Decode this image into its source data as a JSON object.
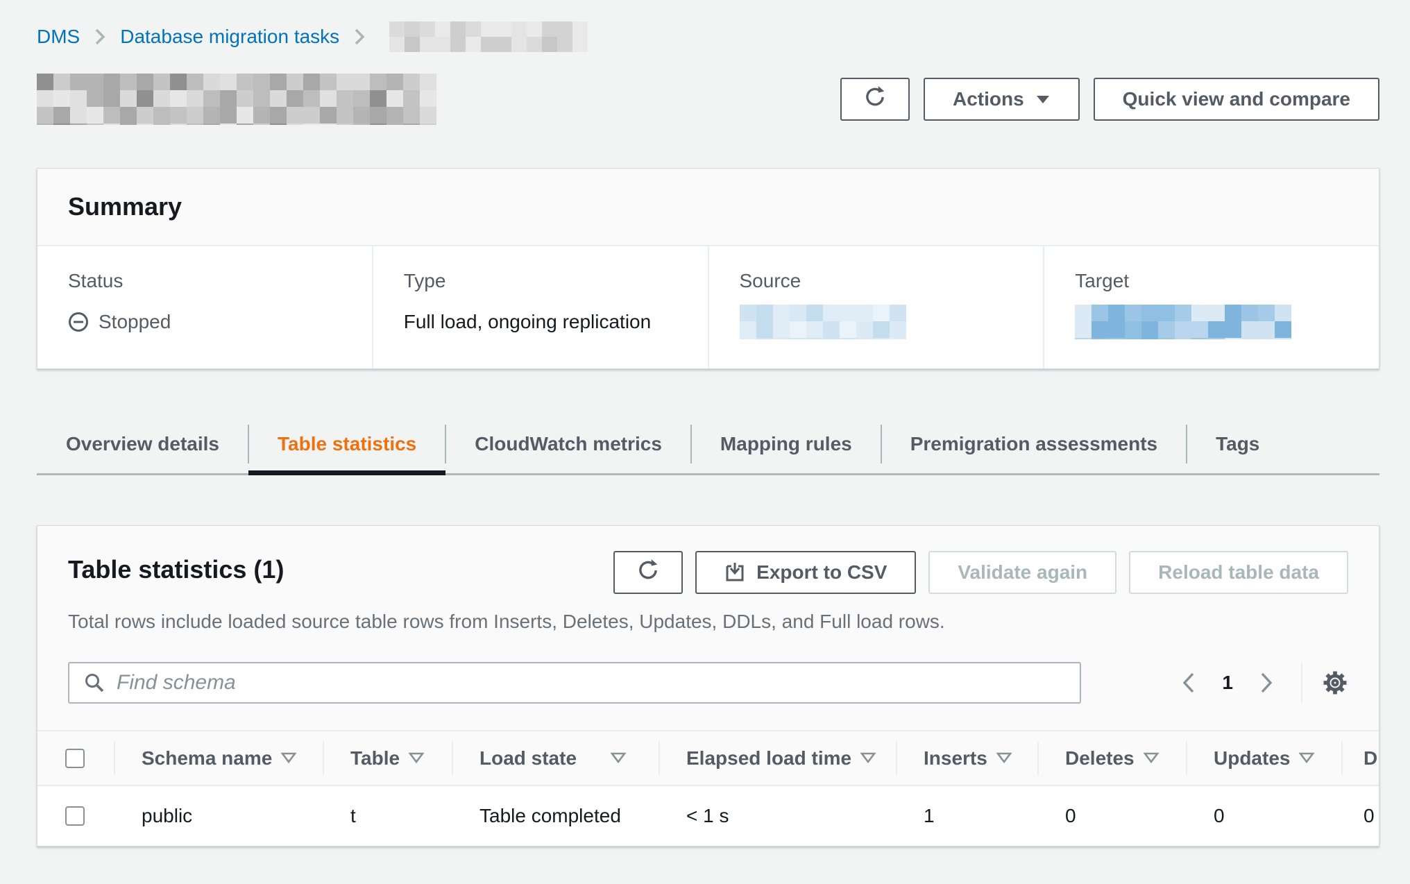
{
  "breadcrumb": {
    "items": [
      {
        "label": "DMS"
      },
      {
        "label": "Database migration tasks"
      }
    ],
    "last_item_redacted": true
  },
  "header": {
    "actions_label": "Actions",
    "quick_view_label": "Quick view and compare",
    "title_redacted": true
  },
  "summary": {
    "title": "Summary",
    "fields": [
      {
        "label": "Status",
        "value": "Stopped",
        "icon": "stopped-minus-circle"
      },
      {
        "label": "Type",
        "value": "Full load, ongoing replication"
      },
      {
        "label": "Source",
        "value_redacted": true
      },
      {
        "label": "Target",
        "value_redacted": true
      }
    ]
  },
  "tabs": [
    {
      "label": "Overview details",
      "active": false
    },
    {
      "label": "Table statistics",
      "active": true
    },
    {
      "label": "CloudWatch metrics",
      "active": false
    },
    {
      "label": "Mapping rules",
      "active": false
    },
    {
      "label": "Premigration assessments",
      "active": false
    },
    {
      "label": "Tags",
      "active": false
    }
  ],
  "table_panel": {
    "title": "Table statistics (1)",
    "description": "Total rows include loaded source table rows from Inserts, Deletes, Updates, DDLs, and Full load rows.",
    "buttons": {
      "export": "Export to CSV",
      "validate": "Validate again",
      "reload": "Reload table data"
    },
    "search_placeholder": "Find schema",
    "pagination": {
      "page": "1"
    }
  },
  "table": {
    "columns": [
      "Schema name",
      "Table",
      "Load state",
      "Elapsed load time",
      "Inserts",
      "Deletes",
      "Updates",
      "D"
    ],
    "rows": [
      [
        "public",
        "t",
        "Table completed",
        "< 1 s",
        "1",
        "0",
        "0",
        "0"
      ]
    ]
  },
  "colors": {
    "accent_active_tab": "#ec7211",
    "link_blue": "#0073bb",
    "text": "#16191f",
    "secondary_text": "#545b64",
    "muted": "#879196",
    "input_border": "#aab7b8",
    "divider": "#eaeded",
    "page_background": "#f2f3f3",
    "card_header_background": "#fafafa"
  },
  "redactions": {
    "title_palette": [
      "#e7e7e7",
      "#cdcdcd",
      "#bdbdbd",
      "#a8a8a8",
      "#909090",
      "#dadada",
      "#c3c3c3",
      "#b4b4b4",
      "#e0e0e0"
    ],
    "breadcrumb_palette": [
      "#e4e4e4",
      "#d3d3d3",
      "#c7c7c7",
      "#dbdbdb",
      "#cecece",
      "#e9e9e9"
    ],
    "source_palette": [
      "#eaf3fa",
      "#d8e8f4",
      "#c3dcee",
      "#cfe3f2",
      "#e0edf7",
      "#dceaf5"
    ],
    "target_palette": [
      "#a5cbe9",
      "#8fbfe3",
      "#b9d6ee",
      "#7fb4dd",
      "#cfe3f2",
      "#9cc5e5",
      "#dceaf5"
    ]
  }
}
